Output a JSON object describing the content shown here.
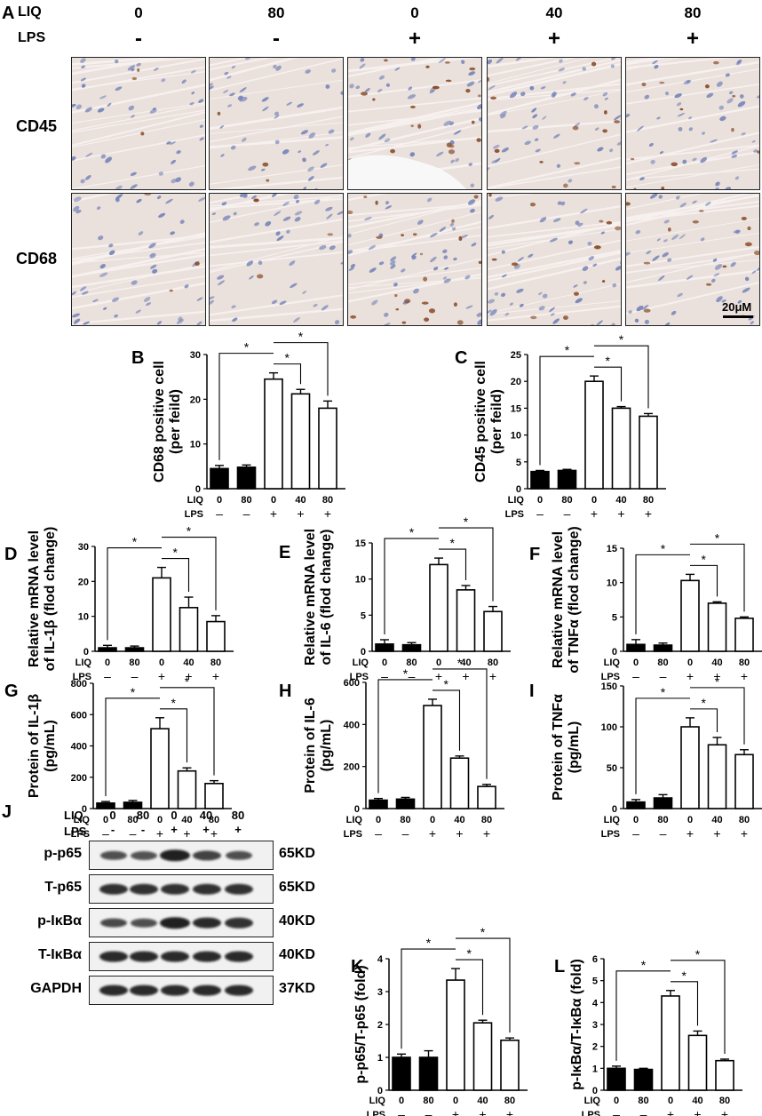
{
  "figure": {
    "panel_a": {
      "letter": "A",
      "liq_label": "LIQ",
      "lps_label": "LPS",
      "liq_values": [
        "0",
        "80",
        "0",
        "40",
        "80"
      ],
      "lps_values": [
        "-",
        "-",
        "+",
        "+",
        "+"
      ],
      "rows": [
        "CD45",
        "CD68"
      ],
      "scale_bar": "20μM",
      "tile_colors": {
        "background": "#eae0dc",
        "nucleus": "#6f7fb6",
        "brown": "#8a4e2a"
      }
    },
    "condition_labels": {
      "liq": "LIQ",
      "lps": "LPS",
      "liq_values": [
        "0",
        "80",
        "0",
        "40",
        "80"
      ],
      "lps_values": [
        "–",
        "–",
        "+",
        "+",
        "+"
      ]
    },
    "western_blot": {
      "letter": "J",
      "liq_label": "LIQ",
      "lps_label": "LPS",
      "liq_values": [
        "0",
        "80",
        "0",
        "40",
        "80"
      ],
      "lps_values": [
        "-",
        "-",
        "+",
        "+",
        "+"
      ],
      "rows": [
        {
          "label": "p-p65",
          "kd": "65KD",
          "intensity": [
            0.55,
            0.5,
            0.95,
            0.65,
            0.55
          ]
        },
        {
          "label": "T-p65",
          "kd": "65KD",
          "intensity": [
            0.8,
            0.8,
            0.8,
            0.8,
            0.8
          ]
        },
        {
          "label": "p-IκBα",
          "kd": "40KD",
          "intensity": [
            0.6,
            0.55,
            0.95,
            0.85,
            0.8
          ]
        },
        {
          "label": "T-IκBα",
          "kd": "40KD",
          "intensity": [
            0.85,
            0.85,
            0.85,
            0.85,
            0.85
          ]
        },
        {
          "label": "GAPDH",
          "kd": "37KD",
          "intensity": [
            0.85,
            0.85,
            0.85,
            0.85,
            0.85
          ]
        }
      ]
    }
  },
  "chart_data": [
    {
      "id": "B",
      "type": "bar",
      "letter": "B",
      "ylabel": [
        "CD68 positive cell",
        "(per feild)"
      ],
      "ylim": [
        0,
        30
      ],
      "yticks": [
        0,
        10,
        20,
        30
      ],
      "values": [
        4.5,
        4.8,
        24.5,
        21.2,
        18.0
      ],
      "errors": [
        0.7,
        0.5,
        1.4,
        1.0,
        1.6
      ],
      "star": "*"
    },
    {
      "id": "C",
      "type": "bar",
      "letter": "C",
      "ylabel": [
        "CD45 positive cell",
        "(per feild)"
      ],
      "ylim": [
        0,
        25
      ],
      "yticks": [
        0,
        5,
        10,
        15,
        20,
        25
      ],
      "values": [
        3.2,
        3.4,
        20.0,
        15.0,
        13.5
      ],
      "errors": [
        0.2,
        0.2,
        1.0,
        0.3,
        0.5
      ],
      "star": "*"
    },
    {
      "id": "D",
      "type": "bar",
      "letter": "D",
      "ylabel": [
        "Relative mRNA level",
        "of IL-1β (flod change)"
      ],
      "ylim": [
        0,
        30
      ],
      "yticks": [
        0,
        10,
        20,
        30
      ],
      "values": [
        1.0,
        1.0,
        21.0,
        12.5,
        8.5
      ],
      "errors": [
        0.7,
        0.5,
        3.0,
        3.0,
        1.7
      ],
      "star": "*"
    },
    {
      "id": "E",
      "type": "bar",
      "letter": "E",
      "ylabel": [
        "Relative mRNA level",
        "of IL-6 (flod change)"
      ],
      "ylim": [
        0,
        15
      ],
      "yticks": [
        0,
        5,
        10,
        15
      ],
      "values": [
        1.0,
        0.9,
        12.0,
        8.5,
        5.5
      ],
      "errors": [
        0.6,
        0.3,
        0.9,
        0.6,
        0.7
      ],
      "star": "*"
    },
    {
      "id": "F",
      "type": "bar",
      "letter": "F",
      "ylabel": [
        "Relative mRNA level",
        "of TNFα (flod change)"
      ],
      "ylim": [
        0,
        15
      ],
      "yticks": [
        0,
        5,
        10,
        15
      ],
      "values": [
        1.0,
        0.9,
        10.3,
        7.0,
        4.8
      ],
      "errors": [
        0.7,
        0.3,
        0.9,
        0.2,
        0.2
      ],
      "star": "*"
    },
    {
      "id": "G",
      "type": "bar",
      "letter": "G",
      "ylabel": [
        "Protein of IL-1β",
        "(pg/mL)"
      ],
      "ylim": [
        0,
        800
      ],
      "yticks": [
        0,
        200,
        400,
        600,
        800
      ],
      "values": [
        35,
        40,
        510,
        240,
        160
      ],
      "errors": [
        10,
        12,
        70,
        20,
        18
      ],
      "star": "*"
    },
    {
      "id": "H",
      "type": "bar",
      "letter": "H",
      "ylabel": [
        "Protein of IL-6",
        "(pg/mL)"
      ],
      "ylim": [
        0,
        600
      ],
      "yticks": [
        0,
        200,
        400,
        600
      ],
      "values": [
        40,
        45,
        490,
        240,
        105
      ],
      "errors": [
        8,
        8,
        30,
        10,
        10
      ],
      "star": "*"
    },
    {
      "id": "I",
      "type": "bar",
      "letter": "I",
      "ylabel": [
        "Protein of TNFα",
        "(pg/mL)"
      ],
      "ylim": [
        0,
        150
      ],
      "yticks": [
        0,
        50,
        100,
        150
      ],
      "values": [
        8,
        13,
        100,
        78,
        66
      ],
      "errors": [
        3,
        4,
        11,
        9,
        6
      ],
      "star": "*"
    },
    {
      "id": "K",
      "type": "bar",
      "letter": "K",
      "ylabel": [
        "p-p65/T-p65 (fold)"
      ],
      "ylim": [
        0,
        4
      ],
      "yticks": [
        0,
        1,
        2,
        3,
        4
      ],
      "values": [
        1.0,
        1.0,
        3.35,
        2.05,
        1.52
      ],
      "errors": [
        0.1,
        0.2,
        0.35,
        0.08,
        0.07
      ],
      "star": "*"
    },
    {
      "id": "L",
      "type": "bar",
      "letter": "L",
      "ylabel": [
        "p-IκBα/T-IκBα (fold)"
      ],
      "ylim": [
        0,
        6
      ],
      "yticks": [
        0,
        1,
        2,
        3,
        4,
        5,
        6
      ],
      "values": [
        1.0,
        0.95,
        4.3,
        2.5,
        1.35
      ],
      "errors": [
        0.1,
        0.05,
        0.25,
        0.2,
        0.07
      ],
      "star": "*"
    }
  ]
}
